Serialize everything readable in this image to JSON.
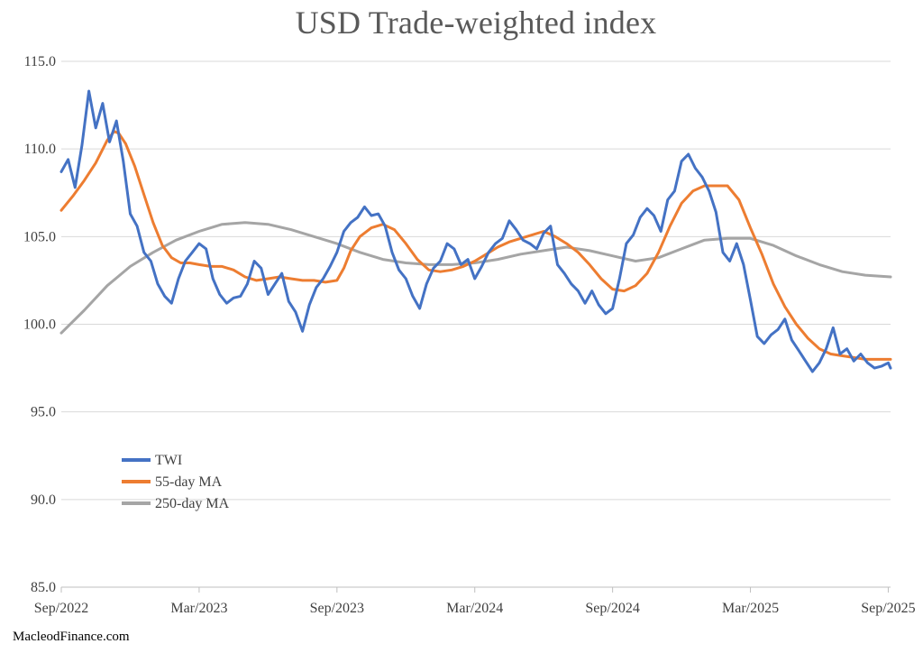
{
  "chart_data": {
    "type": "line",
    "title": "USD Trade-weighted index",
    "xlabel": "",
    "ylabel": "",
    "ylim": [
      85,
      115
    ],
    "yticks": [
      "85.0",
      "90.0",
      "95.0",
      "100.0",
      "105.0",
      "110.0",
      "115.0"
    ],
    "ytick_values": [
      85,
      90,
      95,
      100,
      105,
      110,
      115
    ],
    "xlim": [
      0,
      36.1
    ],
    "xticks": [
      "Sep/2022",
      "Mar/2023",
      "Sep/2023",
      "Mar/2024",
      "Sep/2024",
      "Mar/2025",
      "Sep/2025"
    ],
    "xtick_values": [
      0,
      6,
      12,
      18,
      24,
      30,
      36
    ],
    "grid": true,
    "legend_position": "lower-left",
    "series": [
      {
        "name": "TWI",
        "color": "#4472C4",
        "x": [
          0,
          0.3,
          0.6,
          0.9,
          1.2,
          1.5,
          1.8,
          2.1,
          2.4,
          2.7,
          3.0,
          3.3,
          3.6,
          3.9,
          4.2,
          4.5,
          4.8,
          5.1,
          5.4,
          5.7,
          6.0,
          6.3,
          6.6,
          6.9,
          7.2,
          7.5,
          7.8,
          8.1,
          8.4,
          8.7,
          9.0,
          9.3,
          9.6,
          9.9,
          10.2,
          10.5,
          10.8,
          11.1,
          11.4,
          11.7,
          12.0,
          12.3,
          12.6,
          12.9,
          13.2,
          13.5,
          13.8,
          14.1,
          14.4,
          14.7,
          15.0,
          15.3,
          15.6,
          15.9,
          16.2,
          16.5,
          16.8,
          17.1,
          17.4,
          17.7,
          18.0,
          18.3,
          18.6,
          18.9,
          19.2,
          19.5,
          19.8,
          20.1,
          20.4,
          20.7,
          21.0,
          21.3,
          21.6,
          21.9,
          22.2,
          22.5,
          22.8,
          23.1,
          23.4,
          23.7,
          24.0,
          24.3,
          24.6,
          24.9,
          25.2,
          25.5,
          25.8,
          26.1,
          26.4,
          26.7,
          27.0,
          27.3,
          27.6,
          27.9,
          28.2,
          28.5,
          28.8,
          29.1,
          29.4,
          29.7,
          30.0,
          30.3,
          30.6,
          30.9,
          31.2,
          31.5,
          31.8,
          32.1,
          32.4,
          32.7,
          33.0,
          33.3,
          33.6,
          33.9,
          34.2,
          34.5,
          34.8,
          35.1,
          35.4,
          35.7,
          36.0,
          36.1
        ],
        "values": [
          108.7,
          109.4,
          107.8,
          110.2,
          113.3,
          111.2,
          112.6,
          110.4,
          111.6,
          109.3,
          106.3,
          105.6,
          104.1,
          103.6,
          102.3,
          101.6,
          101.2,
          102.6,
          103.6,
          104.1,
          104.6,
          104.3,
          102.6,
          101.7,
          101.2,
          101.5,
          101.6,
          102.3,
          103.6,
          103.2,
          101.7,
          102.3,
          102.9,
          101.3,
          100.7,
          99.6,
          101.1,
          102.1,
          102.6,
          103.3,
          104.1,
          105.3,
          105.8,
          106.1,
          106.7,
          106.2,
          106.3,
          105.6,
          104.1,
          103.1,
          102.6,
          101.6,
          100.9,
          102.3,
          103.2,
          103.6,
          104.6,
          104.3,
          103.4,
          103.7,
          102.6,
          103.3,
          104.1,
          104.6,
          104.9,
          105.9,
          105.4,
          104.8,
          104.6,
          104.3,
          105.2,
          105.6,
          103.4,
          102.9,
          102.3,
          101.9,
          101.2,
          101.9,
          101.1,
          100.6,
          100.9,
          102.6,
          104.6,
          105.1,
          106.1,
          106.6,
          106.2,
          105.3,
          107.1,
          107.6,
          109.3,
          109.7,
          108.9,
          108.4,
          107.6,
          106.4,
          104.1,
          103.6,
          104.6,
          103.4,
          101.4,
          99.3,
          98.9,
          99.4,
          99.7,
          100.3,
          99.1,
          98.5,
          97.9,
          97.3,
          97.8,
          98.6,
          99.8,
          98.3,
          98.6,
          97.9,
          98.3,
          97.8,
          97.5,
          97.6,
          97.8,
          97.5
        ],
        "line_width": 3
      },
      {
        "name": "55-day MA",
        "color": "#ED7D31",
        "x": [
          0,
          0.5,
          1.0,
          1.5,
          2.0,
          2.3,
          2.5,
          2.8,
          3.2,
          3.6,
          4.0,
          4.4,
          4.8,
          5.2,
          5.6,
          6.0,
          6.5,
          7.0,
          7.5,
          8.0,
          8.5,
          9.0,
          9.5,
          10.0,
          10.5,
          11.0,
          11.5,
          12.0,
          12.3,
          12.6,
          13.0,
          13.5,
          14.0,
          14.5,
          15.0,
          15.5,
          16.0,
          16.5,
          17.0,
          17.5,
          18.0,
          18.5,
          19.0,
          19.5,
          20.0,
          20.5,
          21.0,
          21.5,
          22.0,
          22.5,
          23.0,
          23.5,
          24.0,
          24.5,
          25.0,
          25.5,
          26.0,
          26.5,
          27.0,
          27.5,
          28.0,
          28.5,
          29.0,
          29.5,
          30.0,
          30.5,
          31.0,
          31.5,
          32.0,
          32.5,
          33.0,
          33.5,
          34.0,
          34.5,
          35.0,
          35.5,
          36.1
        ],
        "values": [
          106.5,
          107.3,
          108.2,
          109.2,
          110.5,
          111.0,
          110.9,
          110.3,
          109.0,
          107.4,
          105.8,
          104.5,
          103.8,
          103.5,
          103.5,
          103.4,
          103.3,
          103.3,
          103.1,
          102.7,
          102.5,
          102.6,
          102.7,
          102.6,
          102.5,
          102.5,
          102.4,
          102.5,
          103.2,
          104.2,
          105.0,
          105.5,
          105.7,
          105.4,
          104.6,
          103.7,
          103.1,
          103.0,
          103.1,
          103.3,
          103.6,
          104.0,
          104.4,
          104.7,
          104.9,
          105.1,
          105.3,
          105.0,
          104.6,
          104.1,
          103.4,
          102.6,
          102.0,
          101.9,
          102.2,
          102.9,
          104.1,
          105.6,
          106.9,
          107.6,
          107.9,
          107.9,
          107.9,
          107.1,
          105.5,
          104.0,
          102.3,
          101.0,
          100.0,
          99.2,
          98.6,
          98.3,
          98.2,
          98.1,
          98.0,
          98.0,
          98.0
        ],
        "line_width": 3
      },
      {
        "name": "250-day MA",
        "color": "#A5A5A5",
        "x": [
          0,
          1,
          2,
          3,
          4,
          5,
          6,
          7,
          8,
          9,
          10,
          11,
          12,
          13,
          14,
          15,
          16,
          17,
          18,
          19,
          20,
          21,
          22,
          23,
          24,
          25,
          26,
          27,
          28,
          29,
          30,
          31,
          32,
          33,
          34,
          35,
          36.1
        ],
        "values": [
          99.5,
          100.8,
          102.2,
          103.3,
          104.1,
          104.8,
          105.3,
          105.7,
          105.8,
          105.7,
          105.4,
          105.0,
          104.6,
          104.1,
          103.7,
          103.5,
          103.4,
          103.4,
          103.5,
          103.7,
          104.0,
          104.2,
          104.4,
          104.2,
          103.9,
          103.6,
          103.8,
          104.3,
          104.8,
          104.9,
          104.9,
          104.5,
          103.9,
          103.4,
          103.0,
          102.8,
          102.7
        ],
        "line_width": 3
      }
    ]
  },
  "footer": {
    "source": "MacleodFinance.com"
  }
}
